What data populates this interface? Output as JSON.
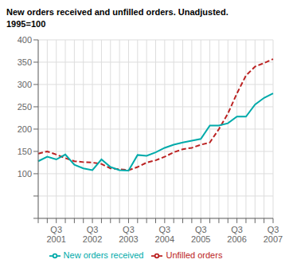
{
  "chart_data": {
    "type": "line",
    "title": "New orders received and unfilled orders. Unadjusted.",
    "subtitle": "1995=100",
    "categories": [
      null,
      null,
      "Q3\n2001",
      null,
      null,
      null,
      "Q3\n2002",
      null,
      null,
      null,
      "Q3\n2003",
      null,
      null,
      null,
      "Q3\n2004",
      null,
      null,
      null,
      "Q3\n2005",
      null,
      null,
      null,
      "Q3\n2006",
      null,
      null,
      null,
      "Q3\n2007"
    ],
    "series": [
      {
        "name": "Unfilled orders",
        "color": "#bb2222",
        "line_style": "dashed",
        "values": [
          145,
          150,
          143,
          135,
          128,
          126,
          125,
          122,
          112,
          110,
          108,
          115,
          125,
          130,
          138,
          148,
          155,
          158,
          165,
          170,
          200,
          235,
          280,
          320,
          340,
          348,
          357
        ]
      },
      {
        "name": "New orders received",
        "color": "#00aaaa",
        "line_style": "solid",
        "values": [
          128,
          138,
          132,
          143,
          120,
          112,
          108,
          132,
          115,
          108,
          107,
          142,
          140,
          148,
          158,
          165,
          170,
          174,
          178,
          208,
          208,
          213,
          228,
          228,
          255,
          270,
          280
        ]
      }
    ],
    "ylim": [
      0,
      400
    ],
    "yticks": [
      {
        "value": 0,
        "label": ""
      },
      {
        "value": 50,
        "label": ""
      },
      100,
      150,
      200,
      250,
      300,
      350,
      400
    ],
    "grid": true,
    "legend": "bottom"
  }
}
